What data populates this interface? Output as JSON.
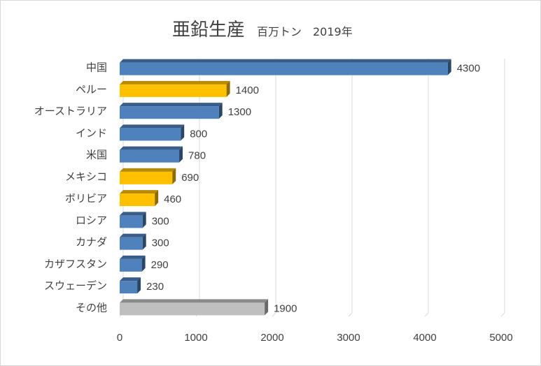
{
  "chart_data": {
    "type": "bar",
    "orientation": "horizontal",
    "title": "亜鉛生産",
    "subtitle": "百万トン　2019年",
    "categories": [
      "中国",
      "ペルー",
      "オーストラリア",
      "インド",
      "米国",
      "メキシコ",
      "ボリビア",
      "ロシア",
      "カナダ",
      "カザフスタン",
      "スウェーデン",
      "その他"
    ],
    "values": [
      4300,
      1400,
      1300,
      800,
      780,
      690,
      460,
      300,
      300,
      290,
      230,
      1900
    ],
    "value_labels": [
      "4300",
      "1400",
      "1300",
      "800",
      "780",
      "690",
      "460",
      "300",
      "300",
      "290",
      "230",
      "1900"
    ],
    "bar_colors": [
      "#4f81bd",
      "#ffc000",
      "#4f81bd",
      "#4f81bd",
      "#4f81bd",
      "#ffc000",
      "#ffc000",
      "#4f81bd",
      "#4f81bd",
      "#4f81bd",
      "#4f81bd",
      "#bfbfbf"
    ],
    "xlim": [
      0,
      5000
    ],
    "x_ticks": [
      0,
      1000,
      2000,
      3000,
      4000,
      5000
    ],
    "x_tick_labels": [
      "0",
      "1000",
      "2000",
      "3000",
      "4000",
      "5000"
    ],
    "grid": "vertical",
    "legend": "none",
    "style": "3d-bar"
  }
}
